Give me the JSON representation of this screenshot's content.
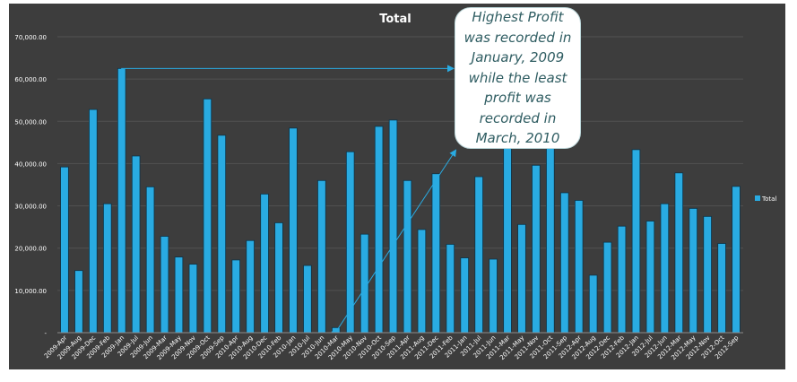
{
  "chart_data": {
    "type": "bar",
    "title": "Total",
    "xlabel": "",
    "ylabel": "",
    "ylim": [
      0,
      70000
    ],
    "yticks": [
      {
        "value": 0,
        "label": "-"
      },
      {
        "value": 10000,
        "label": "10,000.00"
      },
      {
        "value": 20000,
        "label": "20,000.00"
      },
      {
        "value": 30000,
        "label": "30,000.00"
      },
      {
        "value": 40000,
        "label": "40,000.00"
      },
      {
        "value": 50000,
        "label": "50,000.00"
      },
      {
        "value": 60000,
        "label": "60,000.00"
      },
      {
        "value": 70000,
        "label": "70,000.00"
      }
    ],
    "grid": true,
    "legend": "right",
    "categories": [
      "2009-Apr",
      "2009-Aug",
      "2009-Dec",
      "2009-Feb",
      "2009-Jan",
      "2009-Jul",
      "2009-Jun",
      "2009-Mar",
      "2009-May",
      "2009-Nov",
      "2009-Oct",
      "2009-Sep",
      "2010-Apr",
      "2010-Aug",
      "2010-Dec",
      "2010-Feb",
      "2010-Jan",
      "2010-Jul",
      "2010-Jun",
      "2010-Mar",
      "2010-May",
      "2010-Nov",
      "2010-Oct",
      "2010-Sep",
      "2011-Apr",
      "2011-Aug",
      "2011-Dec",
      "2011-Feb",
      "2011-Jan",
      "2011-Jul",
      "2011-Jun",
      "2011-Mar",
      "2011-May",
      "2011-Nov",
      "2011-Oct",
      "2011-Sep",
      "2012-Apr",
      "2012-Aug",
      "2012-Dec",
      "2012-Feb",
      "2012-Jan",
      "2012-Jul",
      "2012-Jun",
      "2012-Mar",
      "2012-May",
      "2012-Nov",
      "2012-Oct",
      "2012-Sep"
    ],
    "series": [
      {
        "name": "Total",
        "color": "#29abe2",
        "values": [
          39200,
          14700,
          52800,
          30500,
          62500,
          41800,
          34500,
          22800,
          17900,
          16200,
          55300,
          46700,
          17200,
          21800,
          32800,
          26000,
          48400,
          15900,
          36000,
          1200,
          42800,
          23300,
          48800,
          50300,
          36000,
          24400,
          37600,
          20900,
          17700,
          36900,
          17400,
          46000,
          25600,
          39600,
          44800,
          33100,
          31300,
          13600,
          21400,
          25200,
          43300,
          26400,
          30500,
          37800,
          29400,
          27500,
          21100,
          34600
        ]
      }
    ],
    "annotations": [
      {
        "text_lines": [
          "Highest Profit",
          "was recorded in",
          "January, 2009",
          "while the least",
          "profit was",
          "recorded in",
          "March, 2010"
        ]
      }
    ],
    "colors": {
      "background": "#3d3d3d",
      "bar_fill": "#29abe2",
      "bar_stroke": "#0d3346",
      "grid": "#525252",
      "text": "#ffffff",
      "arrow": "#29abe2"
    }
  }
}
